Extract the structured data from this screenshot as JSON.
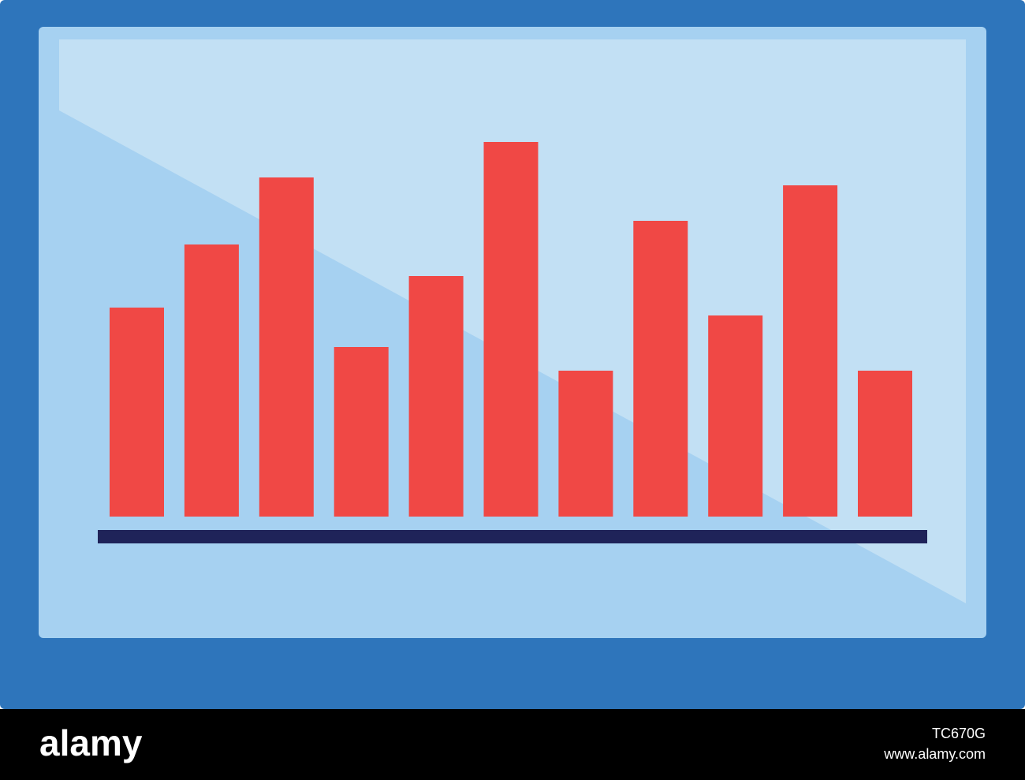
{
  "chart_data": {
    "type": "bar",
    "values": [
      53,
      69,
      86,
      43,
      61,
      95,
      37,
      75,
      51,
      84,
      37
    ],
    "color": "#f04845"
  },
  "footer": {
    "brand": "alamy",
    "image_id": "TC670G",
    "url": "www.alamy.com"
  }
}
